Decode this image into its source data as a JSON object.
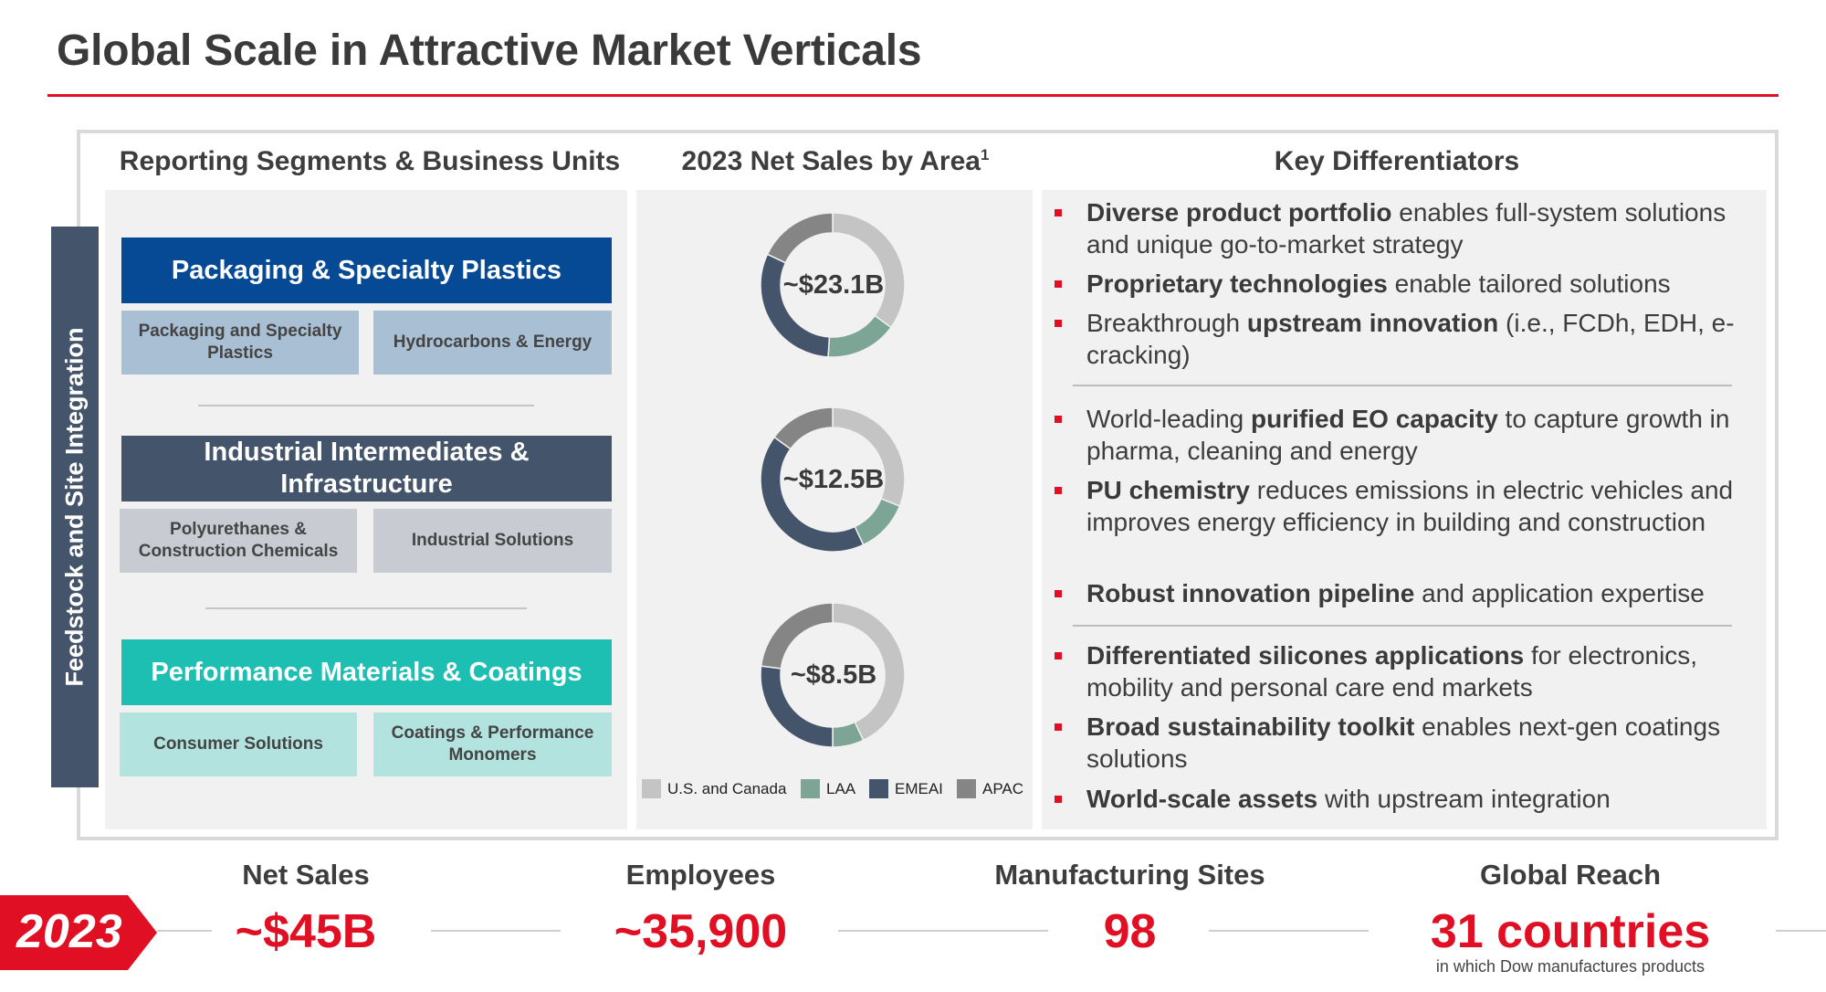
{
  "title": "Global Scale in Attractive Market Verticals",
  "columns": {
    "segments": "Reporting Segments & Business Units",
    "net_sales": "2023 Net Sales by Area",
    "net_sales_sup": "1",
    "differentiators": "Key Differentiators"
  },
  "side_label": "Feedstock and Site Integration",
  "segments": [
    {
      "name": "Packaging & Specialty Plastics",
      "color": "#064a95",
      "units": [
        "Packaging and Specialty Plastics",
        "Hydrocarbons & Energy"
      ],
      "unit_color": "#a9bfd3"
    },
    {
      "name": "Industrial Intermediates & Infrastructure",
      "color": "#44546a",
      "units": [
        "Polyurethanes & Construction Chemicals",
        "Industrial Solutions"
      ],
      "unit_color": "#c8ccd2"
    },
    {
      "name": "Performance Materials & Coatings",
      "color": "#1ebfb3",
      "units": [
        "Consumer Solutions",
        "Coatings & Performance Monomers"
      ],
      "unit_color": "#b2e3de"
    }
  ],
  "donuts": [
    {
      "label": "~$23.1B",
      "shares": [
        0.35,
        0.16,
        0.31,
        0.18
      ]
    },
    {
      "label": "~$12.5B",
      "shares": [
        0.31,
        0.12,
        0.42,
        0.15
      ]
    },
    {
      "label": "~$8.5B",
      "shares": [
        0.43,
        0.07,
        0.27,
        0.23
      ]
    }
  ],
  "legend": [
    {
      "label": "U.S. and Canada",
      "color": "#c4c4c4"
    },
    {
      "label": "LAA",
      "color": "#7da596"
    },
    {
      "label": "EMEAI",
      "color": "#44546a"
    },
    {
      "label": "APAC",
      "color": "#858585"
    }
  ],
  "differentiators": {
    "pkg_1_bold": "Diverse product portfolio",
    "pkg_1_rest": " enables full-system solutions and unique go-to-market strategy",
    "pkg_2_bold": "Proprietary technologies",
    "pkg_2_rest": " enable tailored solutions",
    "pkg_3_pre": "Breakthrough ",
    "pkg_3_bold": "upstream innovation",
    "pkg_3_rest": " (i.e., FCDh, EDH, e-cracking)",
    "ind_1_pre": "World-leading ",
    "ind_1_bold": "purified EO capacity",
    "ind_1_rest": " to capture growth in pharma, cleaning and energy",
    "ind_2_bold": "PU chemistry",
    "ind_2_rest": " reduces emissions in electric vehicles and improves energy efficiency in building and construction",
    "ind_3_bold": "Robust innovation pipeline",
    "ind_3_rest": " and application expertise",
    "pmc_1_bold": "Differentiated silicones applications",
    "pmc_1_rest": " for electronics, mobility and personal care end markets",
    "pmc_2_bold": "Broad sustainability toolkit",
    "pmc_2_rest": " enables next-gen coatings solutions",
    "pmc_3_bold": "World-scale assets",
    "pmc_3_rest": " with upstream integration"
  },
  "year": "2023",
  "stats": [
    {
      "label": "Net Sales",
      "value": "~$45B"
    },
    {
      "label": "Employees",
      "value": "~35,900"
    },
    {
      "label": "Manufacturing Sites",
      "value": "98"
    },
    {
      "label": "Global Reach",
      "value": "31 countries",
      "sub": "in which Dow manufactures products"
    }
  ],
  "colors": {
    "accent": "#e10f24",
    "panel": "#f1f1f1",
    "frame": "#d9d9d9"
  }
}
